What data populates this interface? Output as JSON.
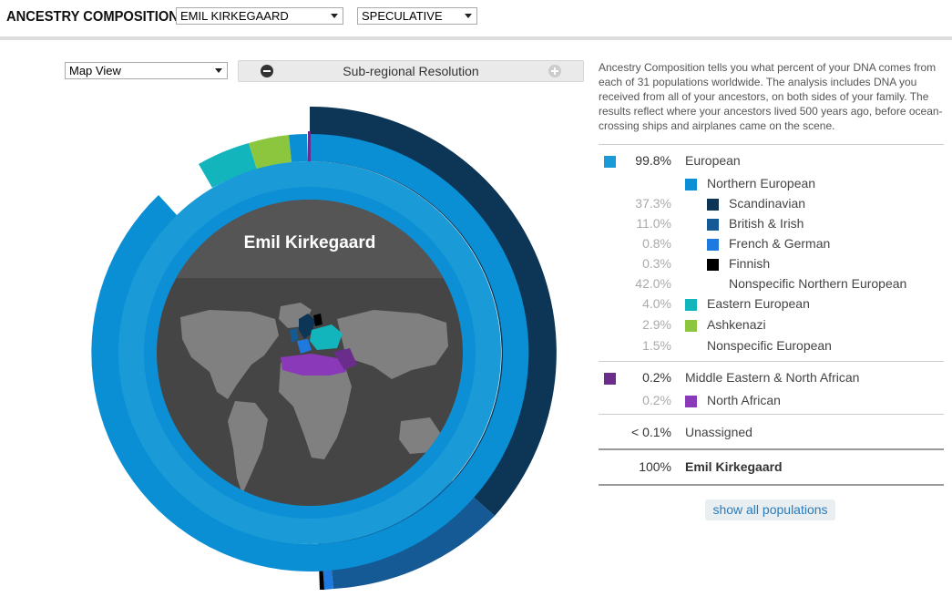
{
  "header": {
    "title": "ANCESTRY COMPOSITION",
    "person_select": "EMIL KIRKEGAARD",
    "mode_select": "SPECULATIVE"
  },
  "controls": {
    "view_select": "Map View",
    "resolution_label": "Sub-regional Resolution"
  },
  "chart": {
    "center_name": "Emil Kirkegaard"
  },
  "description": "Ancestry Composition tells you what percent of your DNA comes from each of 31 populations worldwide. The analysis includes DNA you received from all of your ancestors, on both sides of your family. The results reflect where your ancestors lived 500 years ago, before ocean-crossing ships and airplanes came on the scene.",
  "populations": [
    {
      "pct": "99.8%",
      "name": "European",
      "level": 0,
      "color": "#1a9bd7",
      "swatch": true
    },
    {
      "pct": "",
      "name": "Northern European",
      "level": 1,
      "color": "#0a8fd4",
      "swatch": true
    },
    {
      "pct": "37.3%",
      "name": "Scandinavian",
      "level": 2,
      "color": "#0d3556",
      "swatch": true
    },
    {
      "pct": "11.0%",
      "name": "British & Irish",
      "level": 2,
      "color": "#155a94",
      "swatch": true
    },
    {
      "pct": "0.8%",
      "name": "French & German",
      "level": 2,
      "color": "#1f7ae0",
      "swatch": true
    },
    {
      "pct": "0.3%",
      "name": "Finnish",
      "level": 2,
      "color": "#000000",
      "swatch": true
    },
    {
      "pct": "42.0%",
      "name": "Nonspecific Northern European",
      "level": 2,
      "color": "",
      "swatch": false
    },
    {
      "pct": "4.0%",
      "name": "Eastern European",
      "level": 1,
      "color": "#13b5bd",
      "swatch": true
    },
    {
      "pct": "2.9%",
      "name": "Ashkenazi",
      "level": 1,
      "color": "#8cc63f",
      "swatch": true
    },
    {
      "pct": "1.5%",
      "name": "Nonspecific European",
      "level": 1,
      "color": "",
      "swatch": false
    },
    {
      "pct": "0.2%",
      "name": "Middle Eastern & North African",
      "level": 0,
      "color": "#6b2d8c",
      "swatch": true
    },
    {
      "pct": "0.2%",
      "name": "North African",
      "level": 1,
      "color": "#8a3ab9",
      "swatch": true
    },
    {
      "pct": "< 0.1%",
      "name": "Unassigned",
      "level": 0,
      "color": "",
      "swatch": false
    },
    {
      "pct": "100%",
      "name": "Emil Kirkegaard",
      "level": 0,
      "color": "",
      "swatch": false,
      "bold": true
    }
  ],
  "show_all_label": "show all populations",
  "colors": {
    "european": "#1a9bd7",
    "northern_european": "#0a8fd4",
    "scandinavian": "#0d3556",
    "british_irish": "#155a94",
    "eastern_european": "#13b5bd",
    "ashkenazi": "#8cc63f",
    "north_african": "#8a3ab9",
    "map_bg": "#444444"
  }
}
